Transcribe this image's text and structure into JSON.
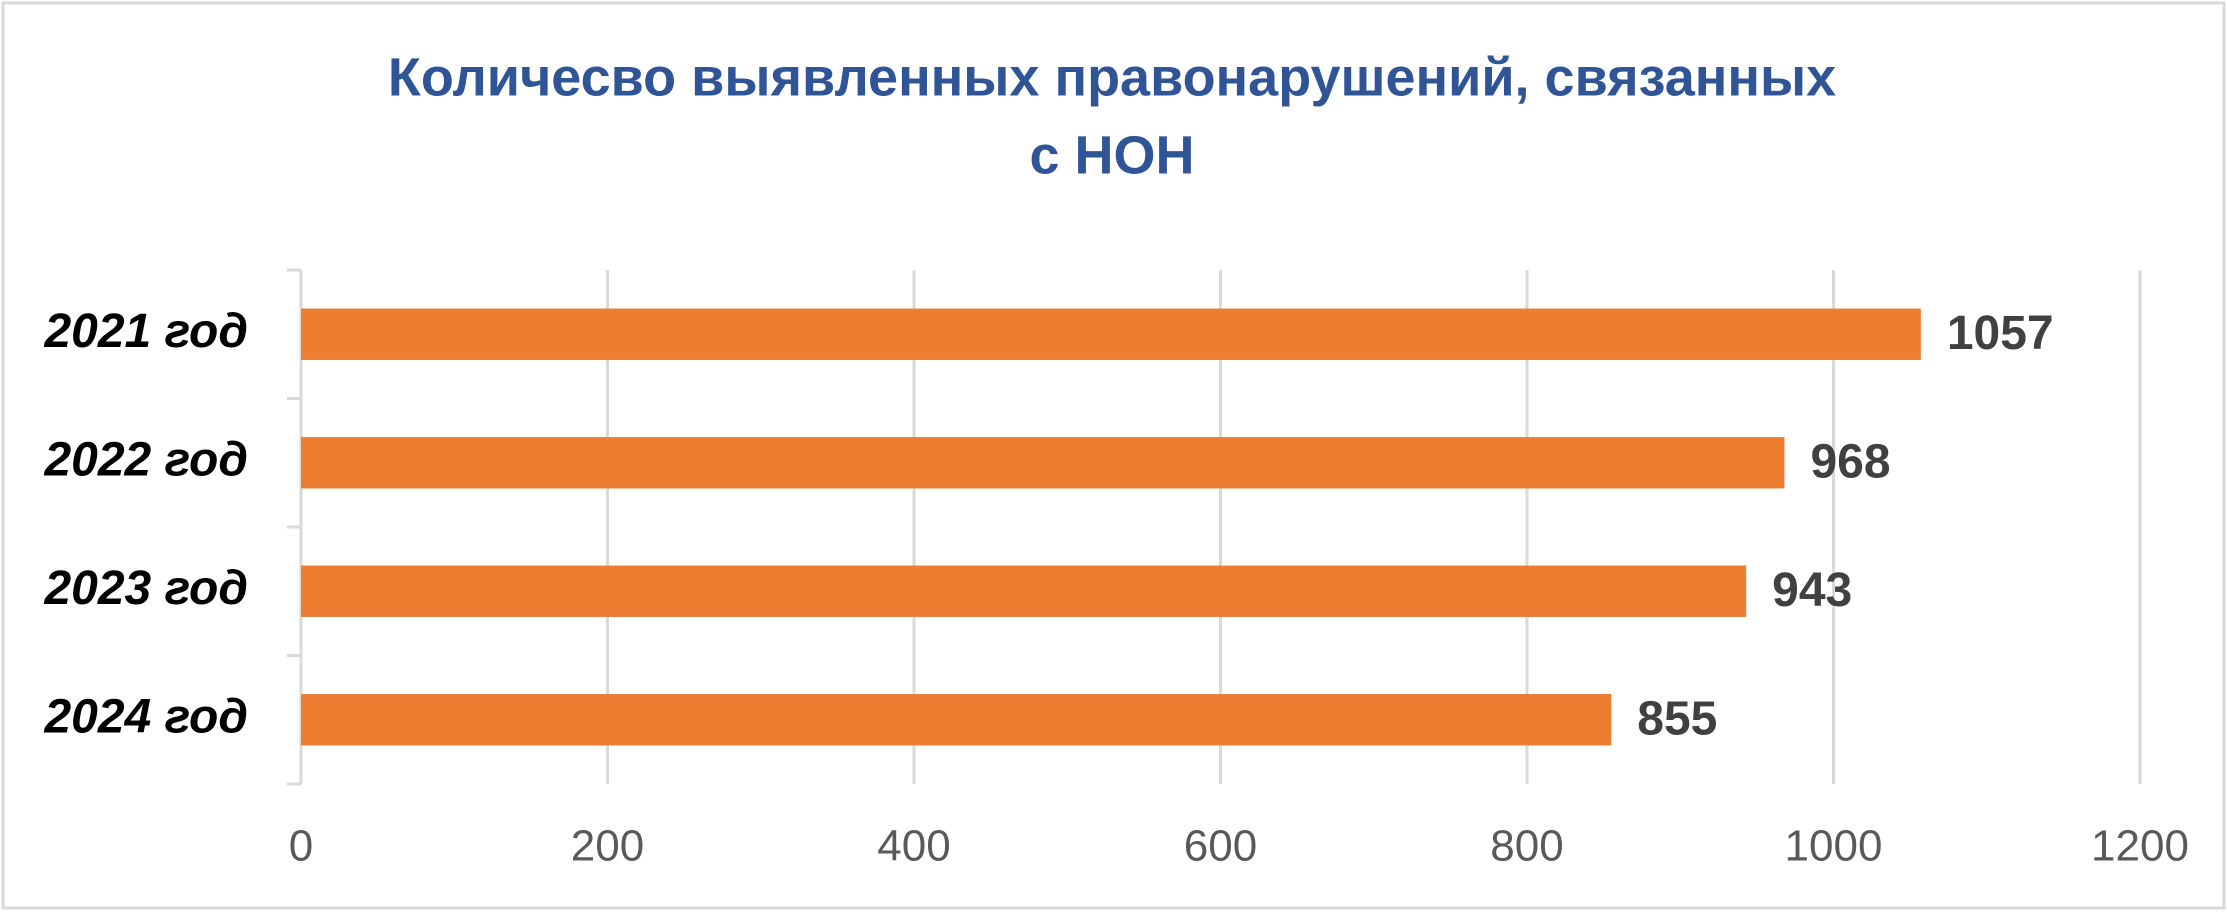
{
  "chart_data": {
    "type": "bar",
    "orientation": "horizontal",
    "title": [
      "Количесво выявленных правонарушений, связанных",
      "с НОН"
    ],
    "categories": [
      "2021 год",
      "2022 год",
      "2023 год",
      "2024 год"
    ],
    "values": [
      1057,
      968,
      943,
      855
    ],
    "color": "#ed7d31",
    "xlim": [
      0,
      1200
    ],
    "xticks": [
      0,
      200,
      400,
      600,
      800,
      1000,
      1200
    ],
    "grid": true
  }
}
